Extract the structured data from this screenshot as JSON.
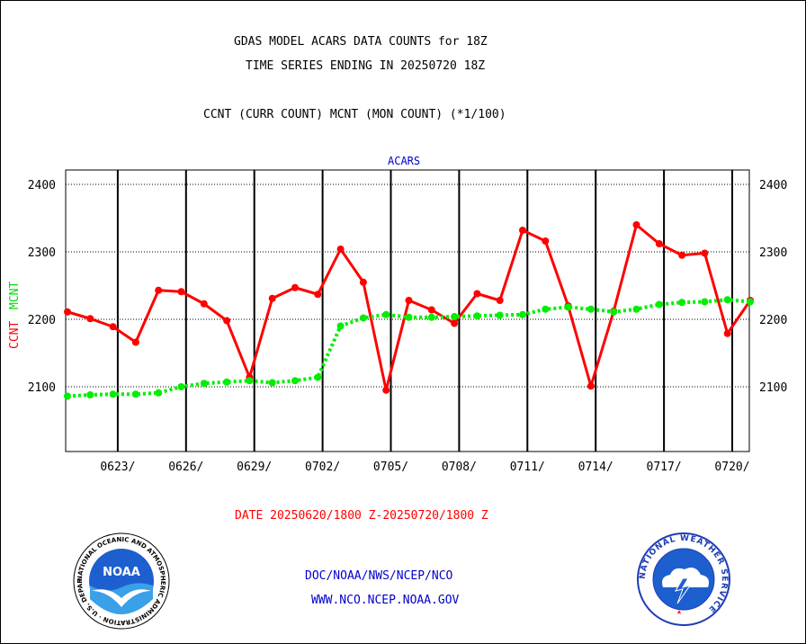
{
  "header": {
    "title_line1": "GDAS MODEL ACARS DATA COUNTS for 18Z",
    "title_line2": "TIME SERIES ENDING IN 20250720 18Z",
    "subtitle": "CCNT (CURR COUNT) MCNT (MON COUNT) (*1/100)"
  },
  "footer": {
    "date_range": "DATE 20250620/1800 Z-20250720/1800 Z",
    "agency": "DOC/NOAA/NWS/NCEP/NCO",
    "website": "WWW.NCO.NCEP.NOAA.GOV",
    "noaa_logo_text": "NATIONAL OCEANIC AND ATMOSPHERIC ADMINISTRATION · U.S. DEPARTMENT OF COMMERCE",
    "noaa_logo_inner": "NOAA",
    "nws_logo_text": "NATIONAL WEATHER SERVICE"
  },
  "chart_data": {
    "type": "line",
    "title": "ACARS",
    "ylabel_ccnt": "CCNT",
    "ylabel_mcnt": "MCNT",
    "ylim": [
      2000,
      2420
    ],
    "yticks": [
      2100,
      2200,
      2300,
      2400
    ],
    "xlim": [
      0,
      30
    ],
    "xticks": [
      {
        "day": 3,
        "label": "0623/"
      },
      {
        "day": 6,
        "label": "0626/"
      },
      {
        "day": 9,
        "label": "0629/"
      },
      {
        "day": 12,
        "label": "0702/"
      },
      {
        "day": 15,
        "label": "0705/"
      },
      {
        "day": 18,
        "label": "0708/"
      },
      {
        "day": 21,
        "label": "0711/"
      },
      {
        "day": 24,
        "label": "0714/"
      },
      {
        "day": 27,
        "label": "0717/"
      },
      {
        "day": 30,
        "label": "0720/"
      }
    ],
    "grid": true,
    "series": [
      {
        "name": "CCNT",
        "color": "#ff0000",
        "style": "solid",
        "x": [
          0,
          1,
          2,
          3,
          4,
          5,
          6,
          7,
          8,
          9,
          10,
          11,
          12,
          13,
          14,
          15,
          16,
          17,
          18,
          19,
          20,
          21,
          22,
          23,
          24,
          25,
          26,
          27,
          28,
          29,
          30
        ],
        "values": [
          2211,
          2201,
          2189,
          2166,
          2243,
          2241,
          2223,
          2198,
          2114,
          2231,
          2247,
          2237,
          2304,
          2255,
          2095,
          2228,
          2214,
          2194,
          2238,
          2228,
          2332,
          2316,
          2220,
          2101,
          2212,
          2340,
          2312,
          2295,
          2298,
          2179,
          2228
        ]
      },
      {
        "name": "MCNT",
        "color": "#00ee00",
        "style": "dotted",
        "x": [
          0,
          1,
          2,
          3,
          4,
          5,
          6,
          7,
          8,
          9,
          10,
          11,
          12,
          13,
          14,
          15,
          16,
          17,
          18,
          19,
          20,
          21,
          22,
          23,
          24,
          25,
          26,
          27,
          28,
          29,
          30
        ],
        "values": [
          2086,
          2088,
          2089,
          2089,
          2091,
          2100,
          2105,
          2107,
          2109,
          2106,
          2109,
          2114,
          2190,
          2202,
          2207,
          2203,
          2203,
          2204,
          2205,
          2206,
          2207,
          2215,
          2218,
          2215,
          2211,
          2215,
          2222,
          2225,
          2226,
          2229,
          2226
        ]
      }
    ]
  }
}
